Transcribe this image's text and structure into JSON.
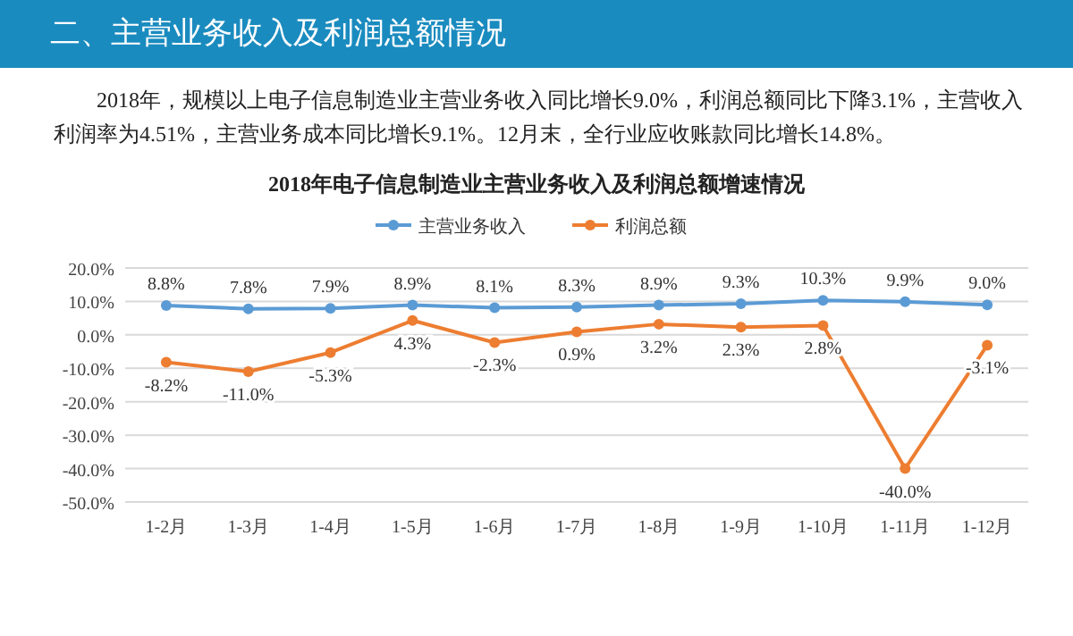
{
  "chart_data": {
    "type": "line",
    "title": "2018年电子信息制造业主营业务收入及利润总额增速情况",
    "annotations": [
      "二、主营业务收入及利润总额情况",
      "2018年，规模以上电子信息制造业主营业务收入同比增长9.0%，利润总额同比下降3.1%，主营收入利润率为4.51%，主营业务成本同比增长9.1%。12月末，全行业应收账款同比增长14.8%。"
    ],
    "categories": [
      "1-2月",
      "1-3月",
      "1-4月",
      "1-5月",
      "1-6月",
      "1-7月",
      "1-8月",
      "1-9月",
      "1-10月",
      "1-11月",
      "1-12月"
    ],
    "series": [
      {
        "name": "主营业务收入",
        "color": "#5b9bd5",
        "values": [
          8.8,
          7.8,
          7.9,
          8.9,
          8.1,
          8.3,
          8.9,
          9.3,
          10.3,
          9.9,
          9.0
        ],
        "value_labels": [
          "8.8%",
          "7.8%",
          "7.9%",
          "8.9%",
          "8.1%",
          "8.3%",
          "8.9%",
          "9.3%",
          "10.3%",
          "9.9%",
          "9.0%"
        ]
      },
      {
        "name": "利润总额",
        "color": "#ed7d31",
        "values": [
          -8.2,
          -11.0,
          -5.3,
          4.3,
          -2.3,
          0.9,
          3.2,
          2.3,
          2.8,
          -40.0,
          -3.1
        ],
        "value_labels": [
          "-8.2%",
          "-11.0%",
          "-5.3%",
          "4.3%",
          "-2.3%",
          "0.9%",
          "3.2%",
          "2.3%",
          "2.8%",
          "-40.0%",
          "-3.1%"
        ]
      }
    ],
    "ylim": [
      -50,
      20
    ],
    "yticks": [
      {
        "value": 20,
        "label": "20.0%"
      },
      {
        "value": 10,
        "label": "10.0%"
      },
      {
        "value": 0,
        "label": "0.0%"
      },
      {
        "value": -10,
        "label": "-10.0%"
      },
      {
        "value": -20,
        "label": "-20.0%"
      },
      {
        "value": -30,
        "label": "-30.0%"
      },
      {
        "value": -40,
        "label": "-40.0%"
      },
      {
        "value": -50,
        "label": "-50.0%"
      }
    ],
    "grid": "y",
    "legend": "top",
    "marker": "circle",
    "line_style": "solid"
  }
}
